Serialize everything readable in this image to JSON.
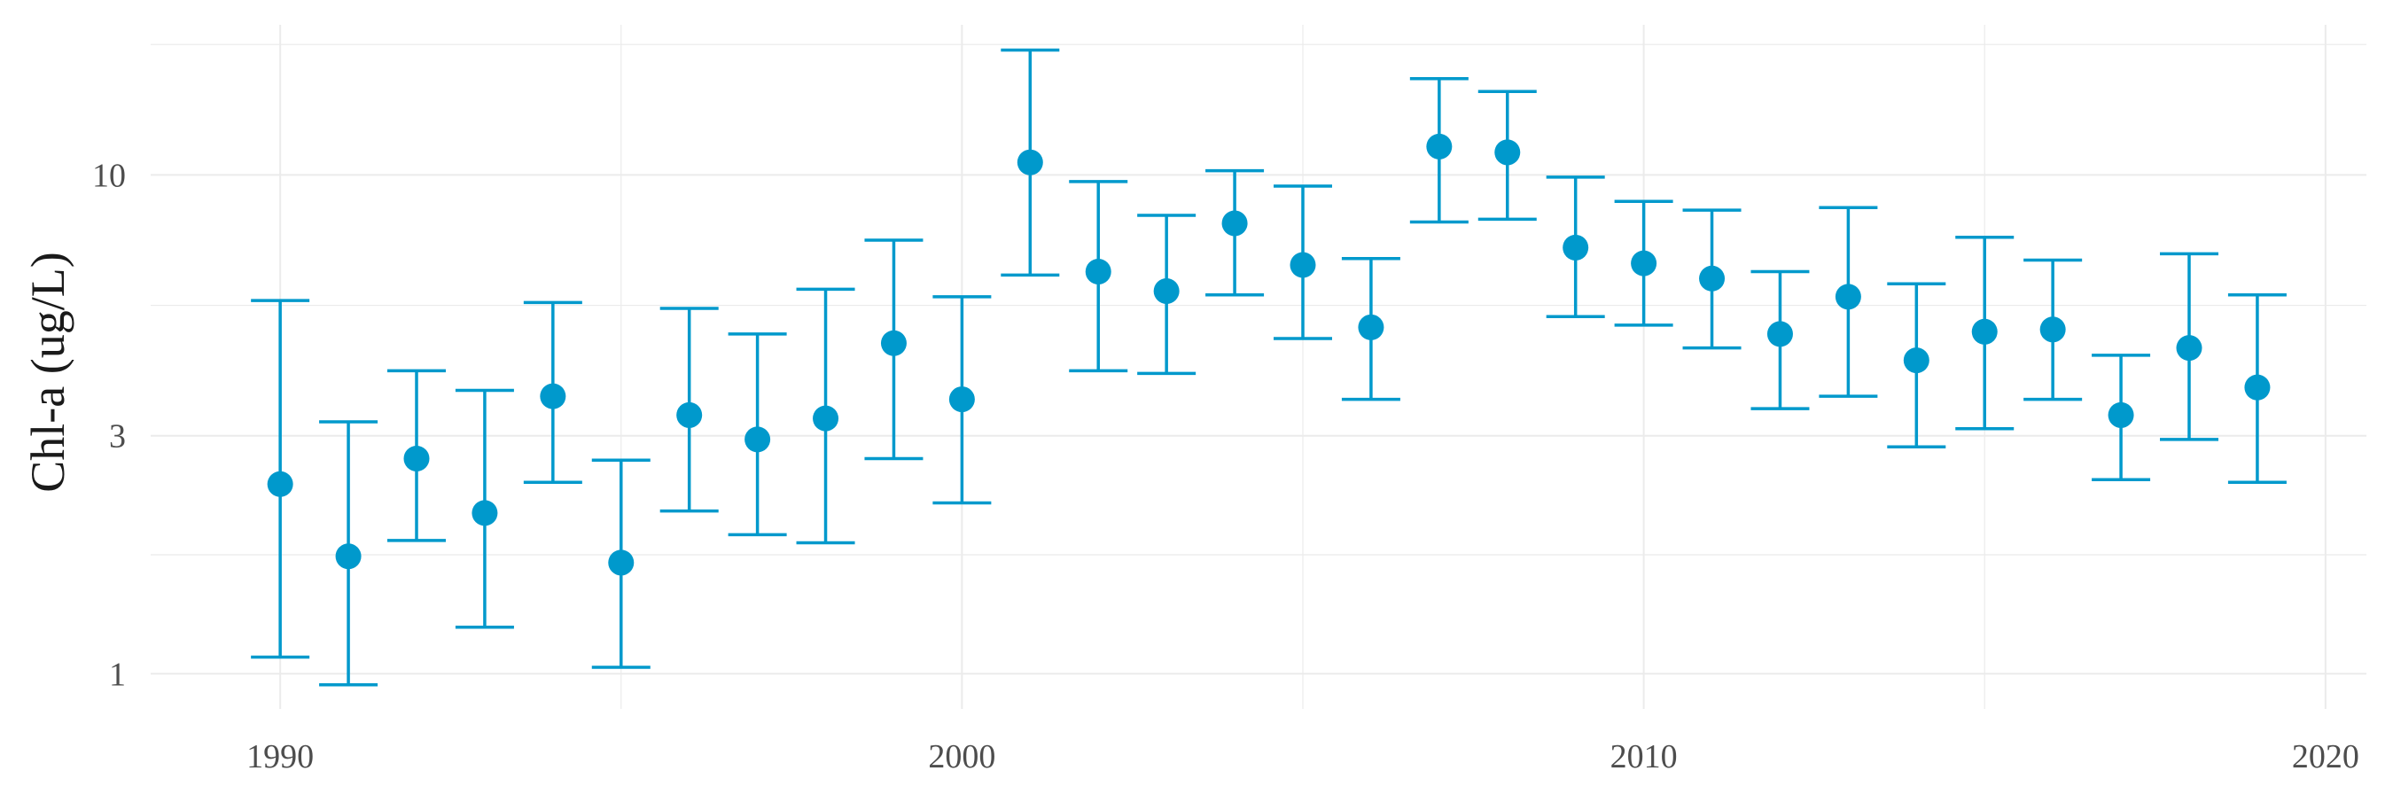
{
  "chart_data": {
    "type": "scatter",
    "ylabel": "Chl-a (ug/L)",
    "xlabel": "",
    "title": "",
    "y_scale": "log10",
    "xlim": [
      1988.1,
      2020.6
    ],
    "ylim": [
      0.85,
      20
    ],
    "x_ticks": [
      1990,
      2000,
      2010,
      2020
    ],
    "x_tick_labels": [
      "1990",
      "2000",
      "2010",
      "2020"
    ],
    "y_ticks": [
      1,
      3,
      10
    ],
    "y_tick_labels": [
      "1",
      "3",
      "10"
    ],
    "grid": true,
    "legend": "none",
    "point_color": "#0099cc",
    "errorbar_color": "#0099cc",
    "series": [
      {
        "points": [
          {
            "x": 1990,
            "y": 2.4,
            "lower": 1.08,
            "upper": 5.6
          },
          {
            "x": 1991,
            "y": 1.72,
            "lower": 0.95,
            "upper": 3.2
          },
          {
            "x": 1992,
            "y": 2.7,
            "lower": 1.85,
            "upper": 4.05
          },
          {
            "x": 1993,
            "y": 2.1,
            "lower": 1.24,
            "upper": 3.7
          },
          {
            "x": 1994,
            "y": 3.6,
            "lower": 2.42,
            "upper": 5.55
          },
          {
            "x": 1995,
            "y": 1.67,
            "lower": 1.03,
            "upper": 2.68
          },
          {
            "x": 1996,
            "y": 3.3,
            "lower": 2.12,
            "upper": 5.4
          },
          {
            "x": 1997,
            "y": 2.95,
            "lower": 1.9,
            "upper": 4.8
          },
          {
            "x": 1998,
            "y": 3.25,
            "lower": 1.83,
            "upper": 5.9
          },
          {
            "x": 1999,
            "y": 4.6,
            "lower": 2.7,
            "upper": 7.4
          },
          {
            "x": 2000,
            "y": 3.55,
            "lower": 2.2,
            "upper": 5.7
          },
          {
            "x": 2001,
            "y": 10.6,
            "lower": 6.3,
            "upper": 17.8
          },
          {
            "x": 2002,
            "y": 6.4,
            "lower": 4.05,
            "upper": 9.7
          },
          {
            "x": 2003,
            "y": 5.85,
            "lower": 4.0,
            "upper": 8.3
          },
          {
            "x": 2004,
            "y": 8.0,
            "lower": 5.75,
            "upper": 10.2
          },
          {
            "x": 2005,
            "y": 6.6,
            "lower": 4.7,
            "upper": 9.5
          },
          {
            "x": 2006,
            "y": 4.95,
            "lower": 3.55,
            "upper": 6.8
          },
          {
            "x": 2007,
            "y": 11.4,
            "lower": 8.05,
            "upper": 15.6
          },
          {
            "x": 2008,
            "y": 11.1,
            "lower": 8.15,
            "upper": 14.7
          },
          {
            "x": 2009,
            "y": 7.15,
            "lower": 5.2,
            "upper": 9.9
          },
          {
            "x": 2010,
            "y": 6.65,
            "lower": 5.0,
            "upper": 8.85
          },
          {
            "x": 2011,
            "y": 6.2,
            "lower": 4.5,
            "upper": 8.5
          },
          {
            "x": 2012,
            "y": 4.8,
            "lower": 3.4,
            "upper": 6.4
          },
          {
            "x": 2013,
            "y": 5.7,
            "lower": 3.6,
            "upper": 8.6
          },
          {
            "x": 2014,
            "y": 4.25,
            "lower": 2.85,
            "upper": 6.05
          },
          {
            "x": 2015,
            "y": 4.85,
            "lower": 3.1,
            "upper": 7.5
          },
          {
            "x": 2016,
            "y": 4.9,
            "lower": 3.55,
            "upper": 6.75
          },
          {
            "x": 2017,
            "y": 3.3,
            "lower": 2.45,
            "upper": 4.35
          },
          {
            "x": 2018,
            "y": 4.5,
            "lower": 2.95,
            "upper": 6.95
          },
          {
            "x": 2019,
            "y": 3.75,
            "lower": 2.42,
            "upper": 5.75
          }
        ]
      }
    ]
  }
}
